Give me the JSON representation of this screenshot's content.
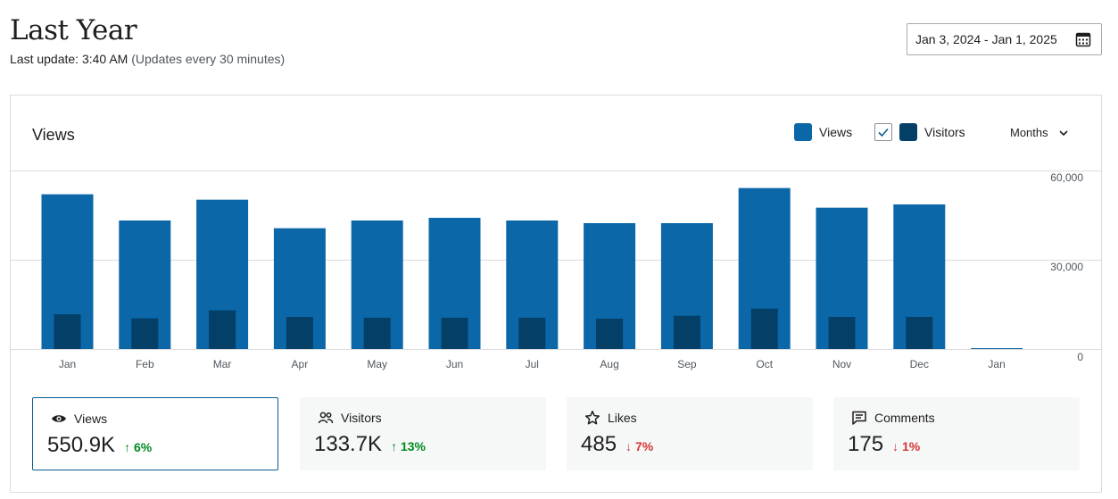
{
  "header": {
    "title": "Last Year",
    "last_update_label": "Last update: 3:40 AM",
    "update_note": "(Updates every 30 minutes)",
    "date_range": "Jan 3, 2024 - Jan 1, 2025"
  },
  "chart_card": {
    "title": "Views",
    "legend_views": "Views",
    "legend_visitors": "Visitors",
    "visitors_checked": true,
    "period": "Months"
  },
  "colors": {
    "views": "#0b67a8",
    "visitors": "#043f68",
    "up": "#008a20",
    "down": "#d63638",
    "grid": "#dcdcde"
  },
  "chart_data": {
    "type": "bar",
    "categories": [
      "Jan",
      "Feb",
      "Mar",
      "Apr",
      "May",
      "Jun",
      "Jul",
      "Aug",
      "Sep",
      "Oct",
      "Nov",
      "Dec",
      "Jan"
    ],
    "series": [
      {
        "name": "Views",
        "values": [
          52000,
          43200,
          50200,
          40600,
          43200,
          44100,
          43200,
          42300,
          42300,
          54100,
          47500,
          48600,
          300
        ]
      },
      {
        "name": "Visitors",
        "values": [
          11700,
          10300,
          13000,
          10800,
          10500,
          10500,
          10500,
          10200,
          11200,
          13600,
          10800,
          10800,
          0
        ]
      }
    ],
    "yticks": [
      "60,000",
      "30,000",
      "0"
    ],
    "ylim": [
      0,
      60000
    ],
    "grid": true
  },
  "stats": [
    {
      "label": "Views",
      "value": "550.9K",
      "delta": "6%",
      "direction": "up",
      "icon": "eye-icon",
      "active": true
    },
    {
      "label": "Visitors",
      "value": "133.7K",
      "delta": "13%",
      "direction": "up",
      "icon": "people-icon",
      "active": false
    },
    {
      "label": "Likes",
      "value": "485",
      "delta": "7%",
      "direction": "down",
      "icon": "star-icon",
      "active": false
    },
    {
      "label": "Comments",
      "value": "175",
      "delta": "1%",
      "direction": "down",
      "icon": "comment-icon",
      "active": false
    }
  ]
}
